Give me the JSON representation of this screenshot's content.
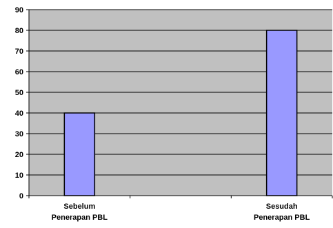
{
  "chart_data": {
    "type": "bar",
    "categories": [
      [
        "Sebelum",
        "Penerapan PBL"
      ],
      [
        "Sesudah",
        "Penerapan PBL"
      ]
    ],
    "values": [
      40,
      80
    ],
    "ylim": [
      0,
      90
    ],
    "yticks": [
      0,
      10,
      20,
      30,
      40,
      50,
      60,
      70,
      80,
      90
    ],
    "grid": true,
    "colors": {
      "plot_background": "#c0c0c0",
      "bar_fill": "#9999ff",
      "bar_stroke": "#000000",
      "gridline": "#000000"
    }
  }
}
